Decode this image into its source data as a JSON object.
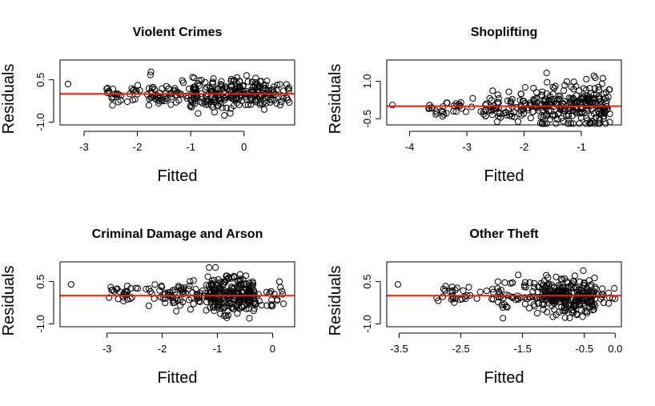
{
  "colors": {
    "reference_line": "#ff1a00",
    "points": "#000000",
    "background": "#ffffff"
  },
  "chart_data": [
    {
      "type": "scatter",
      "title": "Violent Crimes",
      "xlabel": "Fitted",
      "ylabel": "Residuals",
      "xlim": [
        -3.45,
        0.95
      ],
      "ylim": [
        -1.1,
        1.2
      ],
      "xticks": [
        -3,
        -2,
        -1,
        0
      ],
      "xtick_labels": [
        "-3",
        "-2",
        "-1",
        "0"
      ],
      "yticks": [
        -1.0,
        0.5
      ],
      "ytick_labels": [
        "-1.0",
        "0.5"
      ],
      "hline": 0,
      "seed": 11,
      "clusters": [
        {
          "n": 1,
          "xmin": -3.3,
          "xmax": -3.3,
          "ysd": 0.0,
          "ybias": 0.35
        },
        {
          "n": 30,
          "xmin": -2.6,
          "xmax": -1.8,
          "ysd": 0.16,
          "ybias": 0.0
        },
        {
          "n": 55,
          "xmin": -1.8,
          "xmax": -1.0,
          "ysd": 0.22,
          "ybias": 0.0
        },
        {
          "n": 230,
          "xmin": -1.0,
          "xmax": 0.5,
          "ysd": 0.3,
          "ybias": 0.0
        },
        {
          "n": 25,
          "xmin": 0.5,
          "xmax": 0.85,
          "ysd": 0.2,
          "ybias": 0.0
        }
      ]
    },
    {
      "type": "scatter",
      "title": "Shoplifting",
      "xlabel": "Fitted",
      "ylabel": "Residuals",
      "xlim": [
        -4.4,
        -0.3
      ],
      "ylim": [
        -0.75,
        1.85
      ],
      "xticks": [
        -4,
        -3,
        -2,
        -1
      ],
      "xtick_labels": [
        "-4",
        "-3",
        "-2",
        "-1"
      ],
      "yticks": [
        -0.5,
        1.0
      ],
      "ytick_labels": [
        "-0.5",
        "1.0"
      ],
      "hline": 0,
      "seed": 23,
      "clusters": [
        {
          "n": 1,
          "xmin": -4.3,
          "xmax": -4.3,
          "ysd": 0.0,
          "ybias": 0.05
        },
        {
          "n": 40,
          "xmin": -3.7,
          "xmax": -2.6,
          "ysd": 0.16,
          "ybias": -0.05
        },
        {
          "n": 80,
          "xmin": -2.6,
          "xmax": -1.7,
          "ysd": 0.3,
          "ybias": 0.0
        },
        {
          "n": 230,
          "xmin": -1.7,
          "xmax": -0.5,
          "ysd": 0.45,
          "ybias": 0.05
        }
      ]
    },
    {
      "type": "scatter",
      "title": "Criminal Damage and Arson",
      "xlabel": "Fitted",
      "ylabel": "Residuals",
      "xlim": [
        -3.85,
        0.4
      ],
      "ylim": [
        -1.1,
        1.2
      ],
      "xticks": [
        -3,
        -2,
        -1,
        0
      ],
      "xtick_labels": [
        "-3",
        "-2",
        "-1",
        "0"
      ],
      "yticks": [
        -1.0,
        0.5
      ],
      "ytick_labels": [
        "-1.0",
        "0.5"
      ],
      "hline": 0,
      "seed": 37,
      "clusters": [
        {
          "n": 1,
          "xmin": -3.65,
          "xmax": -3.65,
          "ysd": 0.0,
          "ybias": 0.4
        },
        {
          "n": 35,
          "xmin": -3.0,
          "xmax": -2.0,
          "ysd": 0.2,
          "ybias": 0.05
        },
        {
          "n": 60,
          "xmin": -2.0,
          "xmax": -1.2,
          "ysd": 0.22,
          "ybias": 0.0
        },
        {
          "n": 240,
          "xmin": -1.2,
          "xmax": -0.3,
          "ysd": 0.33,
          "ybias": 0.0
        },
        {
          "n": 20,
          "xmin": -0.3,
          "xmax": 0.2,
          "ysd": 0.2,
          "ybias": 0.0
        }
      ]
    },
    {
      "type": "scatter",
      "title": "Other Theft",
      "xlabel": "Fitted",
      "ylabel": "Residuals",
      "xlim": [
        -3.7,
        0.1
      ],
      "ylim": [
        -1.1,
        1.2
      ],
      "xticks": [
        -3.5,
        -2.5,
        -1.5,
        -0.5,
        0.0
      ],
      "xtick_labels": [
        "-3.5",
        "-2.5",
        "-1.5",
        "-0.5",
        "0.0"
      ],
      "yticks": [
        -1.0,
        0.5
      ],
      "ytick_labels": [
        "-1.0",
        "0.5"
      ],
      "hline": 0,
      "seed": 51,
      "clusters": [
        {
          "n": 1,
          "xmin": -3.52,
          "xmax": -3.52,
          "ysd": 0.0,
          "ybias": 0.4
        },
        {
          "n": 30,
          "xmin": -2.9,
          "xmax": -2.0,
          "ysd": 0.18,
          "ybias": 0.0
        },
        {
          "n": 60,
          "xmin": -2.0,
          "xmax": -1.2,
          "ysd": 0.25,
          "ybias": 0.0
        },
        {
          "n": 250,
          "xmin": -1.2,
          "xmax": -0.3,
          "ysd": 0.32,
          "ybias": 0.0
        },
        {
          "n": 12,
          "xmin": -0.3,
          "xmax": 0.0,
          "ysd": 0.15,
          "ybias": 0.0
        }
      ]
    }
  ]
}
